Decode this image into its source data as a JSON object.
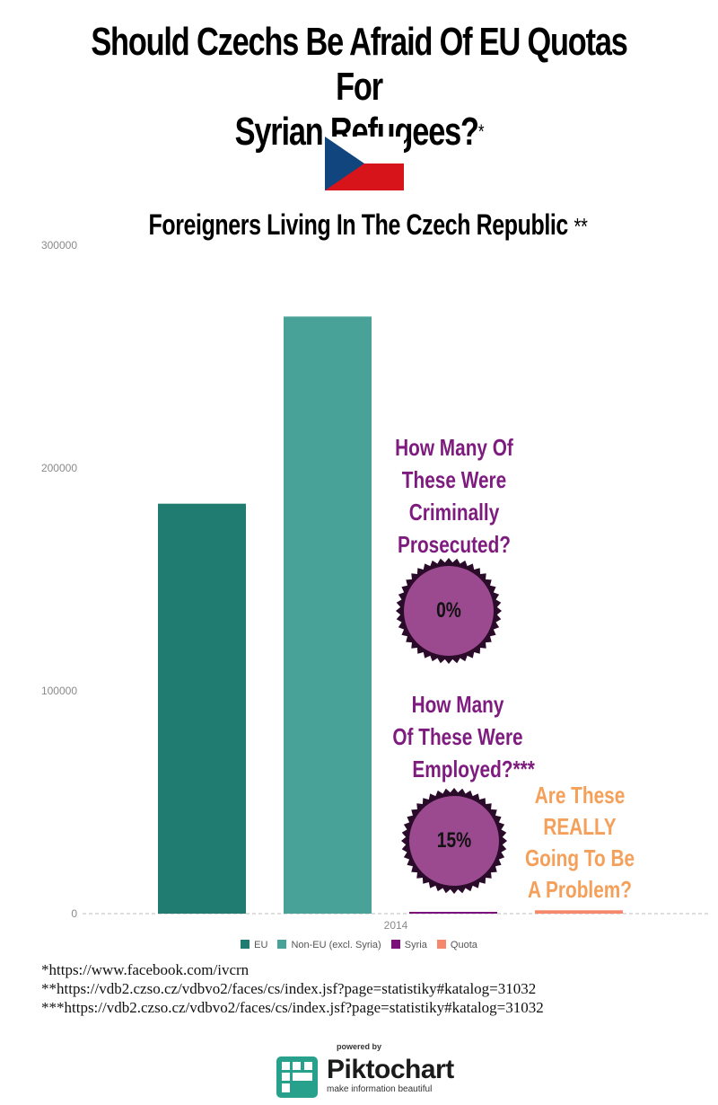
{
  "header": {
    "title_line1": "Should Czechs Be Afraid Of EU Quotas For",
    "title_line2": "Syrian Refugees?",
    "title_mark": "*"
  },
  "flag": {
    "name": "czech-flag",
    "colors": {
      "white": "#ffffff",
      "red": "#d7141a",
      "blue": "#11457e"
    }
  },
  "chart_data": {
    "type": "bar",
    "title": "Foreigners Living In The Czech Republic",
    "title_mark": "**",
    "categories": [
      "2014"
    ],
    "series": [
      {
        "name": "EU",
        "values": [
          184000
        ],
        "color": "#207b70"
      },
      {
        "name": "Non-EU (excl. Syria)",
        "values": [
          268000
        ],
        "color": "#48a297"
      },
      {
        "name": "Syria",
        "values": [
          600
        ],
        "color": "#7a127a"
      },
      {
        "name": "Quota",
        "values": [
          1500
        ],
        "color": "#f5876c"
      }
    ],
    "yticks": [
      "0",
      "100000",
      "200000",
      "300000"
    ],
    "ylim": [
      0,
      300000
    ],
    "grid": false,
    "legend": "bottom"
  },
  "annotations": {
    "criminal": [
      "How Many Of",
      "These Were",
      "Criminally",
      "Prosecuted?"
    ],
    "criminal_value": "0%",
    "employed": [
      "How Many",
      "Of These Were",
      "Employed?***"
    ],
    "employed_value": "15%",
    "problem": [
      "Are These",
      "REALLY",
      "Going To Be",
      "A Problem?"
    ]
  },
  "footnotes": [
    "*https://www.facebook.com/ivcrn",
    "**https://vdb2.czso.cz/vdbvo2/faces/cs/index.jsf?page=statistiky#katalog=31032",
    "***https://vdb2.czso.cz/vdbvo2/faces/cs/index.jsf?page=statistiky#katalog=31032"
  ],
  "branding": {
    "powered_by": "powered by",
    "name": "Piktochart",
    "tagline": "make information beautiful",
    "color": "#27a08c"
  }
}
